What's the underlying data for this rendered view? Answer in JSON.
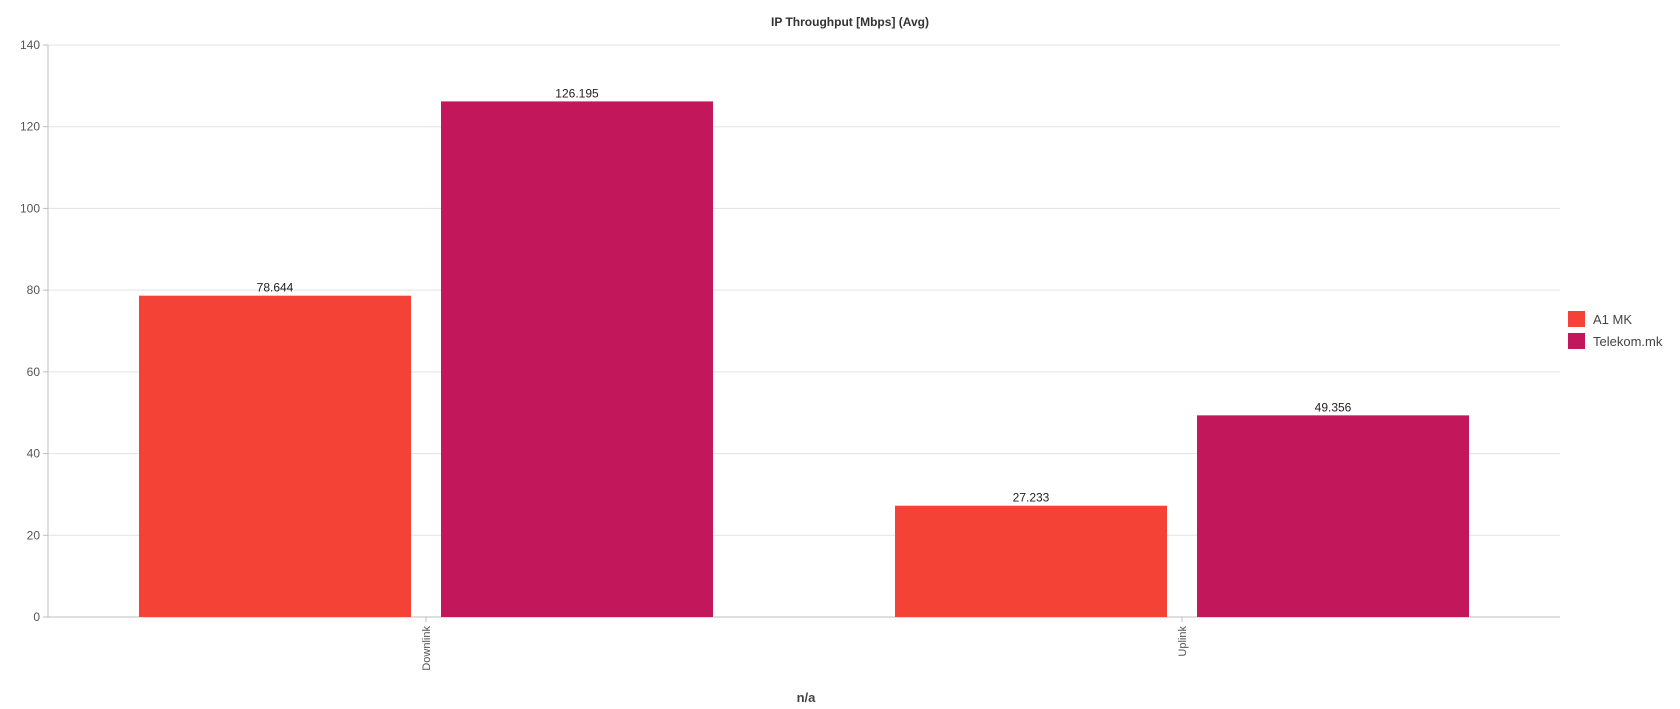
{
  "chart_data": {
    "type": "bar",
    "title": "IP Throughput [Mbps] (Avg)",
    "xlabel": "n/a",
    "ylabel": "",
    "categories": [
      "Downlink",
      "Uplink"
    ],
    "series": [
      {
        "name": "A1 MK",
        "color": "#f44336",
        "values": [
          78.644,
          27.233
        ]
      },
      {
        "name": "Telekom.mk",
        "color": "#c2185b",
        "values": [
          126.195,
          49.356
        ]
      }
    ],
    "ylim": [
      0,
      140
    ],
    "yticks": [
      "0",
      "20",
      "40",
      "60",
      "80",
      "100",
      "120",
      "140"
    ],
    "data_labels": [
      [
        "78.644",
        "27.233"
      ],
      [
        "126.195",
        "49.356"
      ]
    ],
    "grid": true,
    "legend_position": "right"
  }
}
